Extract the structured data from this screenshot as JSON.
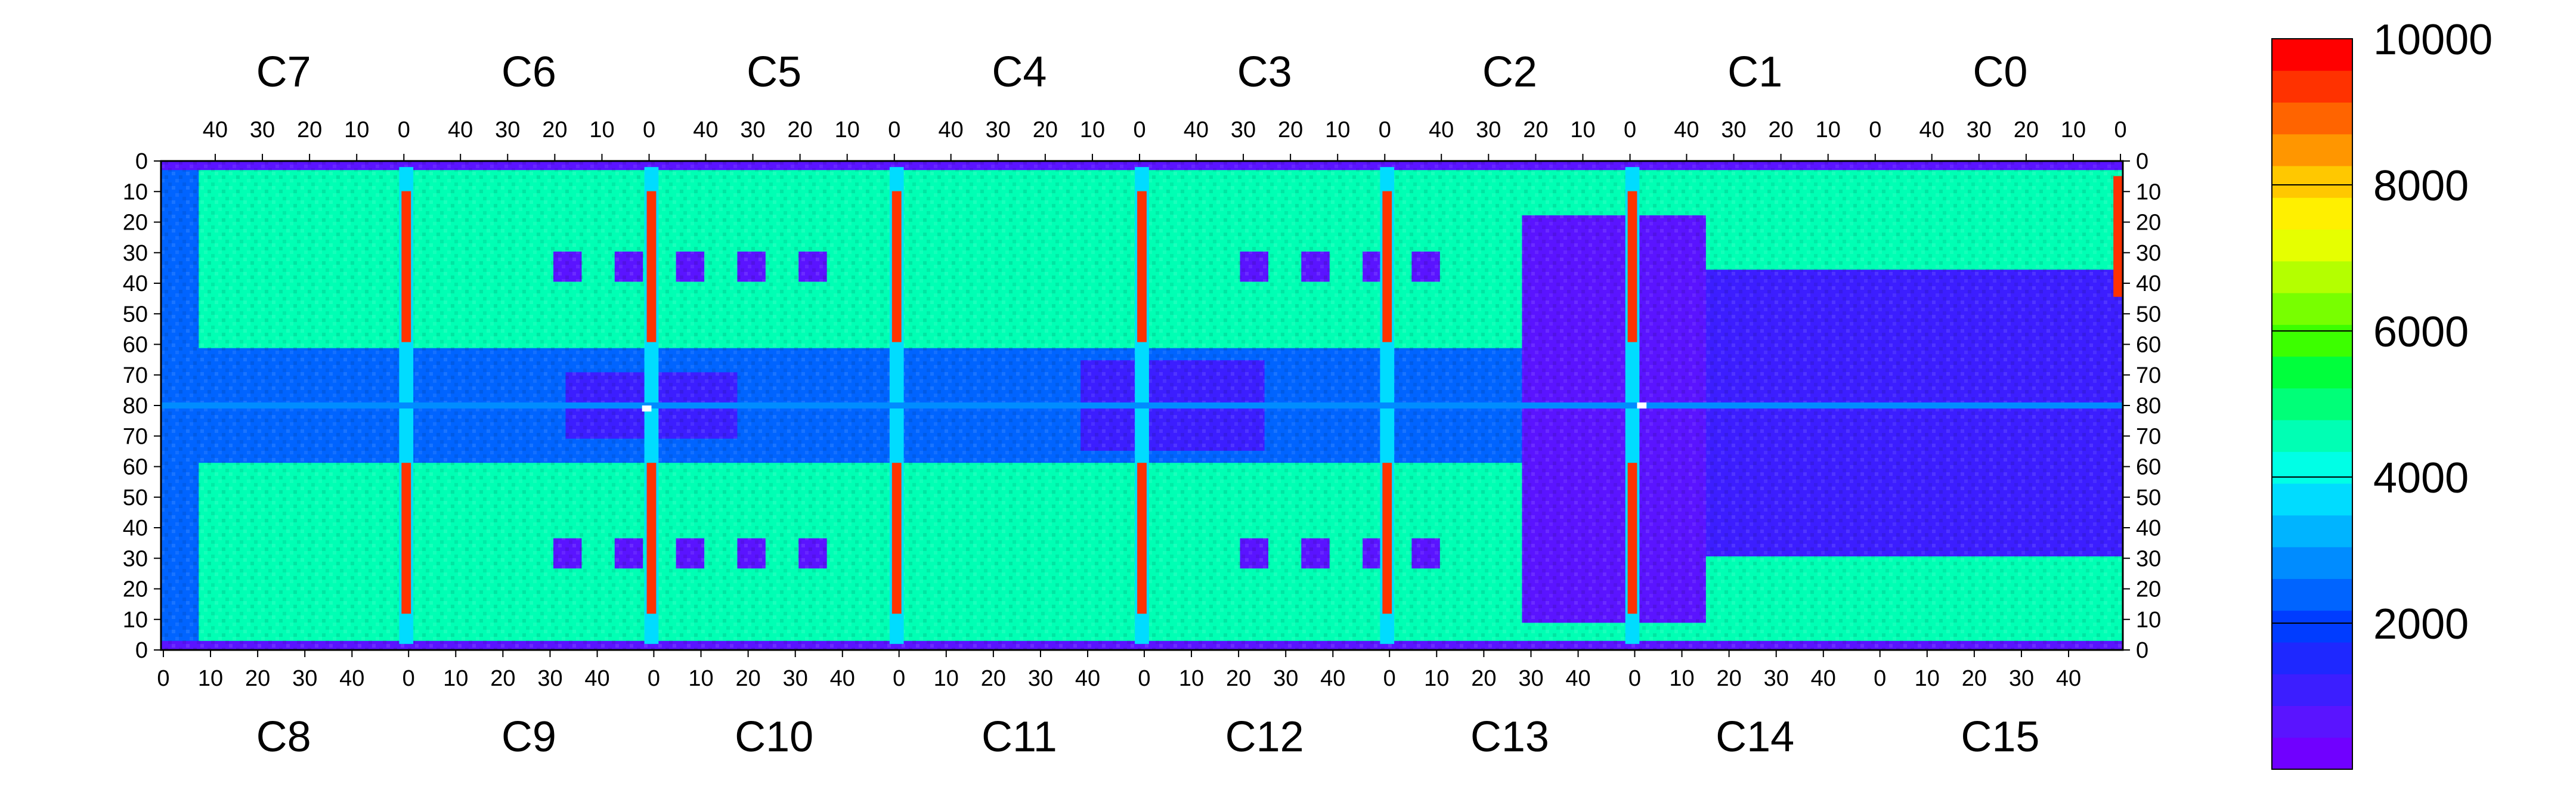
{
  "chart_data": {
    "type": "heatmap",
    "title": "",
    "xlabel": "",
    "ylabel": "",
    "top_chip_labels": [
      "C7",
      "C6",
      "C5",
      "C4",
      "C3",
      "C2",
      "C1",
      "C0"
    ],
    "bottom_chip_labels": [
      "C8",
      "C9",
      "C10",
      "C11",
      "C12",
      "C13",
      "C14",
      "C15"
    ],
    "top_axis_ticks": [
      "40",
      "30",
      "20",
      "10",
      "0"
    ],
    "bottom_axis_ticks": [
      "0",
      "10",
      "20",
      "30",
      "40"
    ],
    "top_axis_end_tick": "0",
    "bottom_axis_end_tick": "0",
    "left_axis_ticks": [
      "0",
      "10",
      "20",
      "30",
      "40",
      "50",
      "60",
      "70",
      "80",
      "70",
      "60",
      "50",
      "40",
      "30",
      "20",
      "10",
      "0"
    ],
    "right_axis_ticks": [
      "0",
      "10",
      "20",
      "30",
      "40",
      "50",
      "60",
      "70",
      "80",
      "70",
      "60",
      "50",
      "40",
      "30",
      "20",
      "10",
      "0"
    ],
    "columns_per_chip": 52,
    "rows_total": 162,
    "zlim": [
      0,
      10000
    ],
    "colorbar_ticks": [
      "2000",
      "4000",
      "6000",
      "8000",
      "10000"
    ],
    "colorbar_tick_values": [
      2000,
      4000,
      6000,
      8000,
      10000
    ],
    "palette": [
      "#7000ff",
      "#5a14ff",
      "#3c1eff",
      "#1e28ff",
      "#003cff",
      "#0064ff",
      "#008cff",
      "#00b4ff",
      "#00dcff",
      "#00ffe6",
      "#00ffb4",
      "#00ff78",
      "#00ff3c",
      "#3cff00",
      "#78ff00",
      "#b4ff00",
      "#e6ff00",
      "#fff000",
      "#ffc800",
      "#ff9600",
      "#ff6400",
      "#ff3200",
      "#ff0000"
    ],
    "regions": [
      {
        "name": "chip-baseline",
        "value": 4500
      },
      {
        "name": "dead-area-C13-C14",
        "value": 500
      },
      {
        "name": "low-area-C1-C0-C15",
        "value": 1000
      },
      {
        "name": "hot-columns",
        "value": 9500
      },
      {
        "name": "central-row-80",
        "value": 3000
      },
      {
        "name": "mid-rows-70-80",
        "value": 2200
      }
    ],
    "hot_pixels": [
      {
        "chip": "C9",
        "col": 50,
        "row": 81,
        "value": 10000
      },
      {
        "chip": "C14",
        "col": 1,
        "row": 80,
        "value": 10000
      }
    ]
  }
}
